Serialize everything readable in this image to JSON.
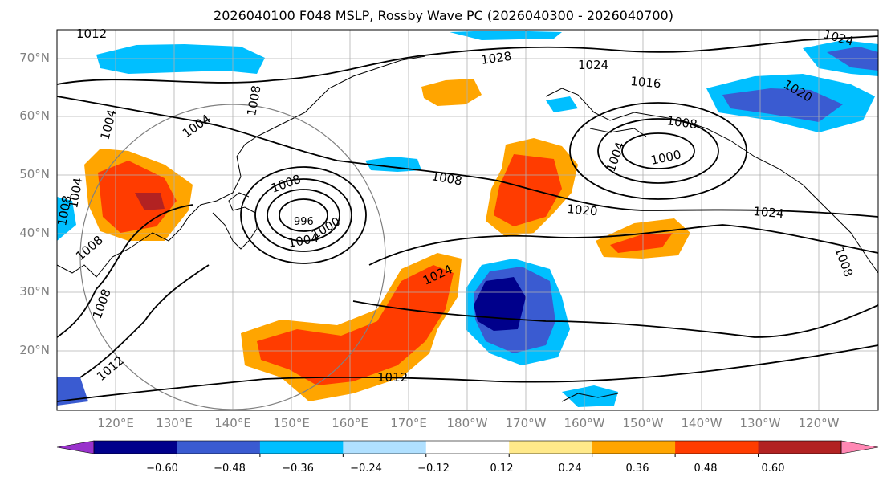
{
  "title": "2026040100 F048 MSLP, Rossby Wave PC (2026040300 - 2026040700)",
  "lat_labels": [
    "70°N",
    "60°N",
    "50°N",
    "40°N",
    "30°N",
    "20°N"
  ],
  "lon_labels": [
    "120°E",
    "130°E",
    "140°E",
    "150°E",
    "160°E",
    "170°E",
    "180°W",
    "170°W",
    "160°W",
    "150°W",
    "140°W",
    "130°W",
    "120°W"
  ],
  "colorbar": {
    "ticks": [
      "−0.60",
      "−0.48",
      "−0.36",
      "−0.24",
      "−0.12",
      "0.12",
      "0.24",
      "0.36",
      "0.48",
      "0.60"
    ],
    "colors": [
      "#9932cc",
      "#00008b",
      "#3a5bd1",
      "#00bfff",
      "#b0e0ff",
      "#ffffff",
      "#ffe98a",
      "#ffa500",
      "#ff3c00",
      "#b22222",
      "#ff88b4"
    ]
  },
  "isobar_labels": [
    "1012",
    "1004",
    "1008",
    "1004",
    "1008",
    "1028",
    "1024",
    "1016",
    "1008",
    "1000",
    "1004",
    "1008",
    "1008",
    "996",
    "1000",
    "1004",
    "1020",
    "1024",
    "1024",
    "1012",
    "1012",
    "1008",
    "1008",
    "1020",
    "1024",
    "1008",
    "1004"
  ]
}
